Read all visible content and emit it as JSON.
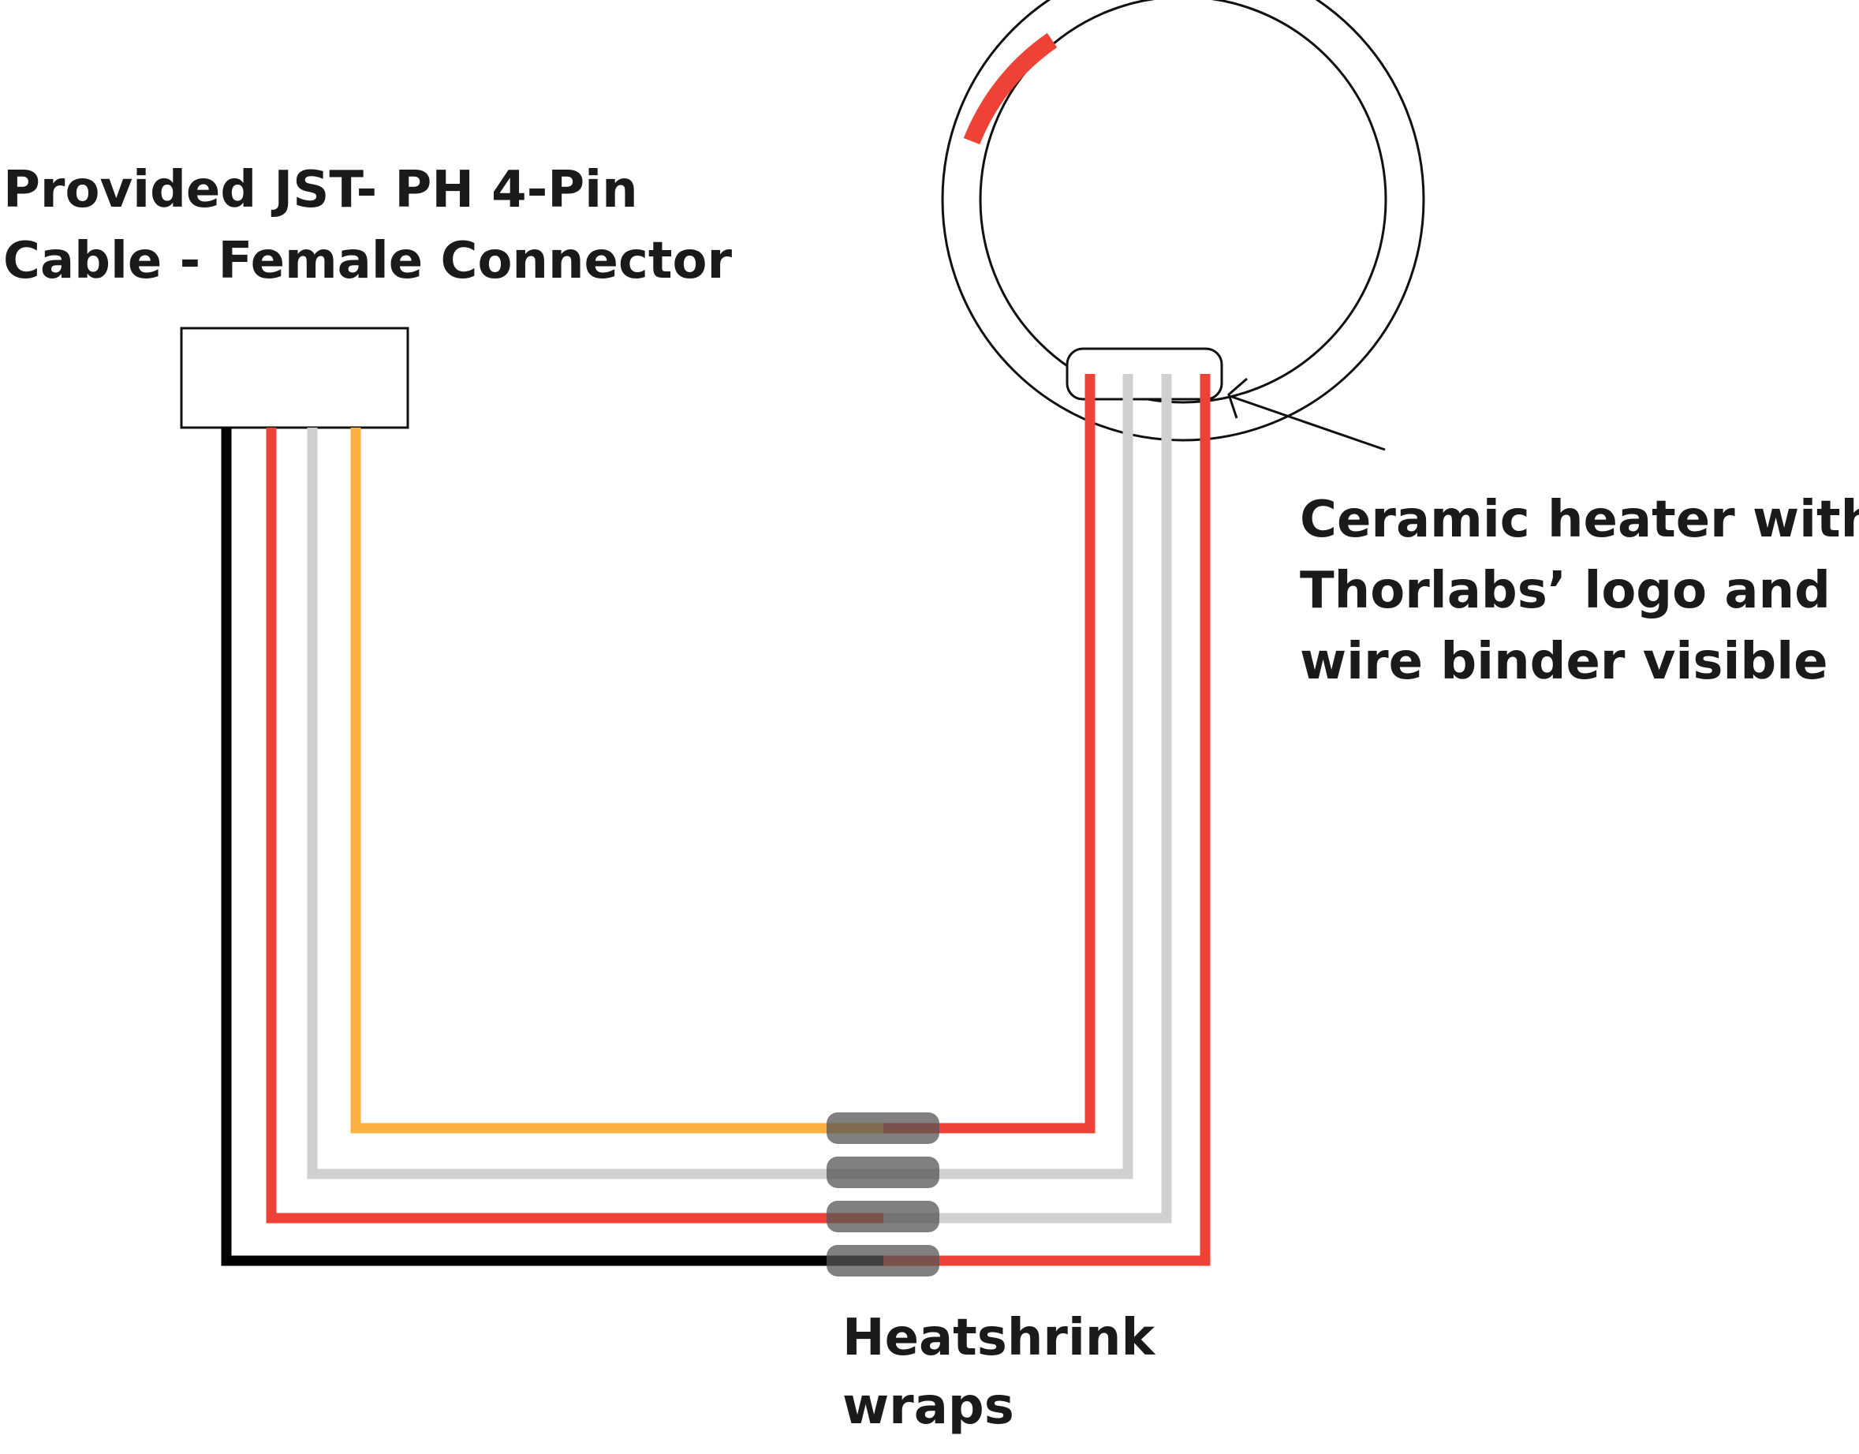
{
  "labels": {
    "connector": [
      "Provided JST- PH 4-Pin",
      "Cable - Female Connector"
    ],
    "heater": [
      "Ceramic heater with",
      "Thorlabs’ logo and",
      "wire binder visible"
    ],
    "heatshrink": [
      "Heatshrink",
      "wraps"
    ]
  },
  "colors": {
    "black_wire": "#000000",
    "red_wire": "#ee4236",
    "gray_wire": "#d0d0d0",
    "orange_wire": "#fbb040",
    "heatshrink": "#555555",
    "outline": "#111111"
  }
}
